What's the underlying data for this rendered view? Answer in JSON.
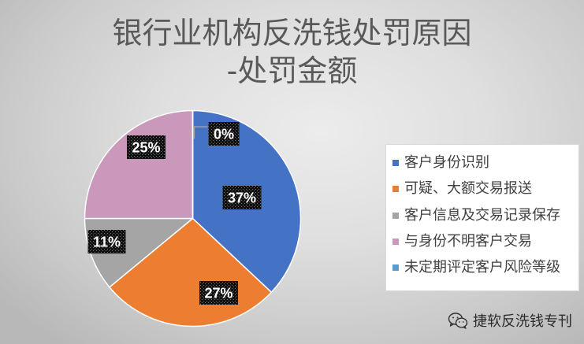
{
  "chart_data": {
    "type": "pie",
    "title": [
      "银行业机构反洗钱处罚原因",
      "-处罚金额"
    ],
    "categories": [
      "客户身份识别",
      "可疑、大额交易报送",
      "客户信息及交易记录保存",
      "与身份不明客户交易",
      "未定期评定客户风险等级"
    ],
    "values": [
      37,
      27,
      11,
      25,
      0
    ],
    "data_labels": [
      "37%",
      "27%",
      "11%",
      "25%",
      "0%"
    ],
    "colors": [
      "#4472C4",
      "#ED7D31",
      "#A5A5A5",
      "#CA98BA",
      "#5B9BD5"
    ],
    "legend": "right"
  },
  "watermark": {
    "icon": "wechat-icon",
    "text": "捷软反洗钱专刊"
  }
}
